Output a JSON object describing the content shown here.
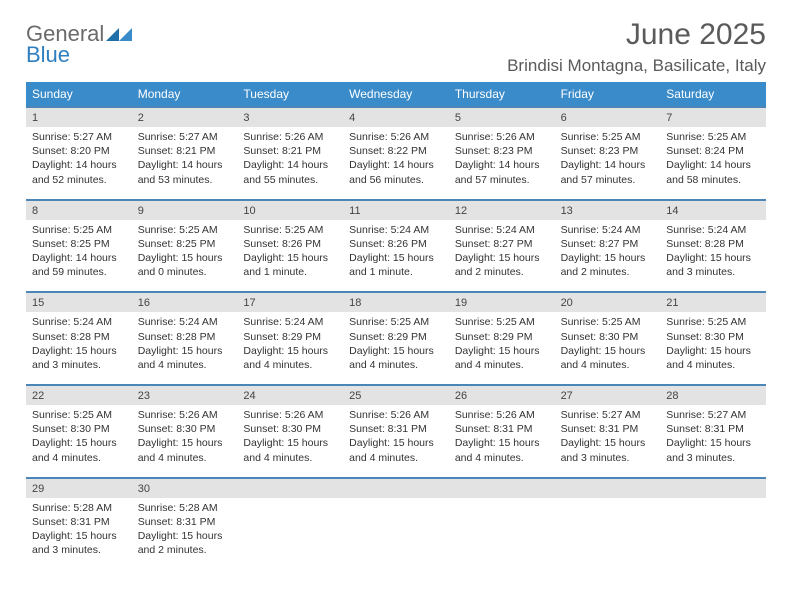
{
  "logo": {
    "text_general": "General",
    "text_blue": "Blue"
  },
  "title": {
    "month": "June 2025",
    "month_fontsize": 30,
    "location": "Brindisi Montagna, Basilicate, Italy",
    "location_fontsize": 17
  },
  "colors": {
    "header_bg": "#3a8bc9",
    "week_border": "#4a86b8",
    "daynum_bg": "#e3e3e3",
    "text_muted": "#5a5a5a",
    "logo_gray": "#6b6b6b",
    "logo_blue": "#2f7fbf",
    "logo_mark": "#1f6fa8"
  },
  "day_labels": [
    "Sunday",
    "Monday",
    "Tuesday",
    "Wednesday",
    "Thursday",
    "Friday",
    "Saturday"
  ],
  "weeks": [
    [
      {
        "n": "1",
        "sunrise": "Sunrise: 5:27 AM",
        "sunset": "Sunset: 8:20 PM",
        "daylight": "Daylight: 14 hours and 52 minutes."
      },
      {
        "n": "2",
        "sunrise": "Sunrise: 5:27 AM",
        "sunset": "Sunset: 8:21 PM",
        "daylight": "Daylight: 14 hours and 53 minutes."
      },
      {
        "n": "3",
        "sunrise": "Sunrise: 5:26 AM",
        "sunset": "Sunset: 8:21 PM",
        "daylight": "Daylight: 14 hours and 55 minutes."
      },
      {
        "n": "4",
        "sunrise": "Sunrise: 5:26 AM",
        "sunset": "Sunset: 8:22 PM",
        "daylight": "Daylight: 14 hours and 56 minutes."
      },
      {
        "n": "5",
        "sunrise": "Sunrise: 5:26 AM",
        "sunset": "Sunset: 8:23 PM",
        "daylight": "Daylight: 14 hours and 57 minutes."
      },
      {
        "n": "6",
        "sunrise": "Sunrise: 5:25 AM",
        "sunset": "Sunset: 8:23 PM",
        "daylight": "Daylight: 14 hours and 57 minutes."
      },
      {
        "n": "7",
        "sunrise": "Sunrise: 5:25 AM",
        "sunset": "Sunset: 8:24 PM",
        "daylight": "Daylight: 14 hours and 58 minutes."
      }
    ],
    [
      {
        "n": "8",
        "sunrise": "Sunrise: 5:25 AM",
        "sunset": "Sunset: 8:25 PM",
        "daylight": "Daylight: 14 hours and 59 minutes."
      },
      {
        "n": "9",
        "sunrise": "Sunrise: 5:25 AM",
        "sunset": "Sunset: 8:25 PM",
        "daylight": "Daylight: 15 hours and 0 minutes."
      },
      {
        "n": "10",
        "sunrise": "Sunrise: 5:25 AM",
        "sunset": "Sunset: 8:26 PM",
        "daylight": "Daylight: 15 hours and 1 minute."
      },
      {
        "n": "11",
        "sunrise": "Sunrise: 5:24 AM",
        "sunset": "Sunset: 8:26 PM",
        "daylight": "Daylight: 15 hours and 1 minute."
      },
      {
        "n": "12",
        "sunrise": "Sunrise: 5:24 AM",
        "sunset": "Sunset: 8:27 PM",
        "daylight": "Daylight: 15 hours and 2 minutes."
      },
      {
        "n": "13",
        "sunrise": "Sunrise: 5:24 AM",
        "sunset": "Sunset: 8:27 PM",
        "daylight": "Daylight: 15 hours and 2 minutes."
      },
      {
        "n": "14",
        "sunrise": "Sunrise: 5:24 AM",
        "sunset": "Sunset: 8:28 PM",
        "daylight": "Daylight: 15 hours and 3 minutes."
      }
    ],
    [
      {
        "n": "15",
        "sunrise": "Sunrise: 5:24 AM",
        "sunset": "Sunset: 8:28 PM",
        "daylight": "Daylight: 15 hours and 3 minutes."
      },
      {
        "n": "16",
        "sunrise": "Sunrise: 5:24 AM",
        "sunset": "Sunset: 8:28 PM",
        "daylight": "Daylight: 15 hours and 4 minutes."
      },
      {
        "n": "17",
        "sunrise": "Sunrise: 5:24 AM",
        "sunset": "Sunset: 8:29 PM",
        "daylight": "Daylight: 15 hours and 4 minutes."
      },
      {
        "n": "18",
        "sunrise": "Sunrise: 5:25 AM",
        "sunset": "Sunset: 8:29 PM",
        "daylight": "Daylight: 15 hours and 4 minutes."
      },
      {
        "n": "19",
        "sunrise": "Sunrise: 5:25 AM",
        "sunset": "Sunset: 8:29 PM",
        "daylight": "Daylight: 15 hours and 4 minutes."
      },
      {
        "n": "20",
        "sunrise": "Sunrise: 5:25 AM",
        "sunset": "Sunset: 8:30 PM",
        "daylight": "Daylight: 15 hours and 4 minutes."
      },
      {
        "n": "21",
        "sunrise": "Sunrise: 5:25 AM",
        "sunset": "Sunset: 8:30 PM",
        "daylight": "Daylight: 15 hours and 4 minutes."
      }
    ],
    [
      {
        "n": "22",
        "sunrise": "Sunrise: 5:25 AM",
        "sunset": "Sunset: 8:30 PM",
        "daylight": "Daylight: 15 hours and 4 minutes."
      },
      {
        "n": "23",
        "sunrise": "Sunrise: 5:26 AM",
        "sunset": "Sunset: 8:30 PM",
        "daylight": "Daylight: 15 hours and 4 minutes."
      },
      {
        "n": "24",
        "sunrise": "Sunrise: 5:26 AM",
        "sunset": "Sunset: 8:30 PM",
        "daylight": "Daylight: 15 hours and 4 minutes."
      },
      {
        "n": "25",
        "sunrise": "Sunrise: 5:26 AM",
        "sunset": "Sunset: 8:31 PM",
        "daylight": "Daylight: 15 hours and 4 minutes."
      },
      {
        "n": "26",
        "sunrise": "Sunrise: 5:26 AM",
        "sunset": "Sunset: 8:31 PM",
        "daylight": "Daylight: 15 hours and 4 minutes."
      },
      {
        "n": "27",
        "sunrise": "Sunrise: 5:27 AM",
        "sunset": "Sunset: 8:31 PM",
        "daylight": "Daylight: 15 hours and 3 minutes."
      },
      {
        "n": "28",
        "sunrise": "Sunrise: 5:27 AM",
        "sunset": "Sunset: 8:31 PM",
        "daylight": "Daylight: 15 hours and 3 minutes."
      }
    ],
    [
      {
        "n": "29",
        "sunrise": "Sunrise: 5:28 AM",
        "sunset": "Sunset: 8:31 PM",
        "daylight": "Daylight: 15 hours and 3 minutes."
      },
      {
        "n": "30",
        "sunrise": "Sunrise: 5:28 AM",
        "sunset": "Sunset: 8:31 PM",
        "daylight": "Daylight: 15 hours and 2 minutes."
      },
      {
        "empty": true
      },
      {
        "empty": true
      },
      {
        "empty": true
      },
      {
        "empty": true
      },
      {
        "empty": true
      }
    ]
  ]
}
